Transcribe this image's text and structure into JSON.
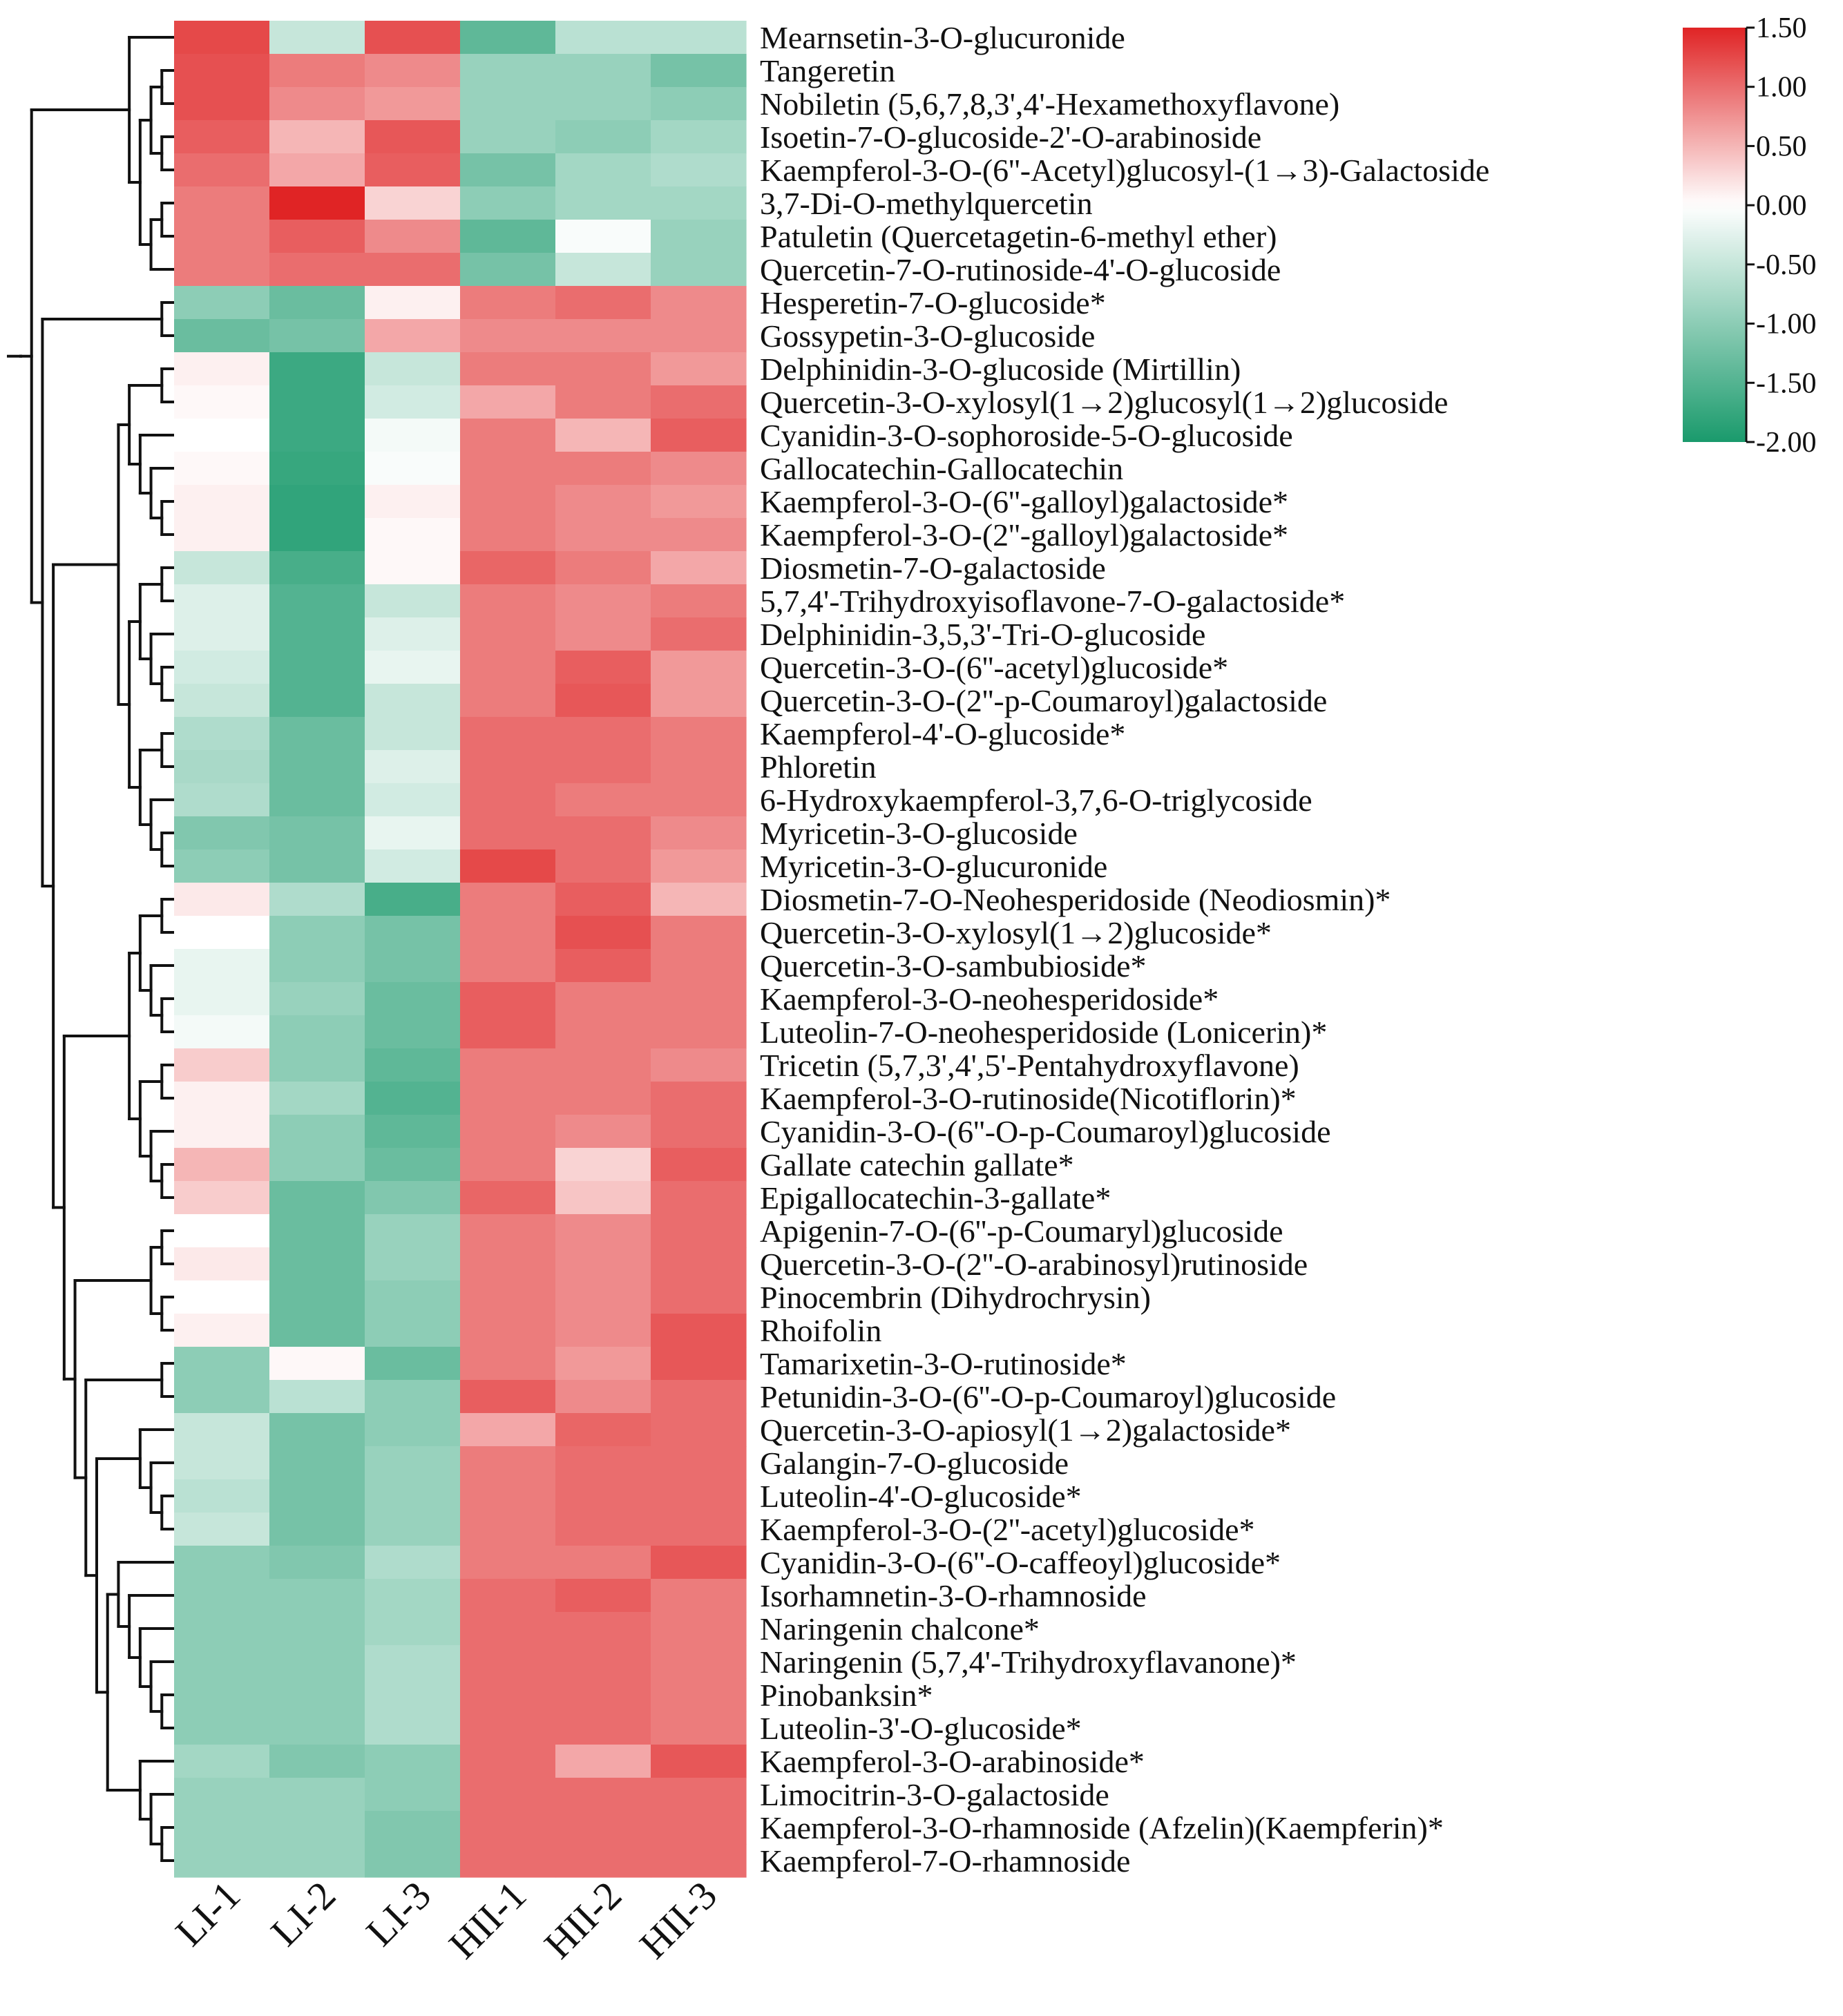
{
  "chart_data": {
    "type": "heatmap",
    "title": "",
    "columns": [
      "LI-1",
      "LI-2",
      "LI-3",
      "HII-1",
      "HII-2",
      "HII-3"
    ],
    "rows": [
      "Mearnsetin-3-O-glucuronide",
      "Tangeretin",
      "Nobiletin (5,6,7,8,3',4'-Hexamethoxyflavone)",
      "Isoetin-7-O-glucoside-2'-O-arabinoside",
      "Kaempferol-3-O-(6''-Acetyl)glucosyl-(1→3)-Galactoside",
      "3,7-Di-O-methylquercetin",
      "Patuletin (Quercetagetin-6-methyl ether)",
      "Quercetin-7-O-rutinoside-4'-O-glucoside",
      "Hesperetin-7-O-glucoside*",
      "Gossypetin-3-O-glucoside",
      "Delphinidin-3-O-glucoside (Mirtillin)",
      "Quercetin-3-O-xylosyl(1→2)glucosyl(1→2)glucoside",
      "Cyanidin-3-O-sophoroside-5-O-glucoside",
      "Gallocatechin-Gallocatechin",
      "Kaempferol-3-O-(6''-galloyl)galactoside*",
      "Kaempferol-3-O-(2''-galloyl)galactoside*",
      "Diosmetin-7-O-galactoside",
      "5,7,4'-Trihydroxyisoflavone-7-O-galactoside*",
      "Delphinidin-3,5,3'-Tri-O-glucoside",
      "Quercetin-3-O-(6''-acetyl)glucoside*",
      "Quercetin-3-O-(2''-p-Coumaroyl)galactoside",
      "Kaempferol-4'-O-glucoside*",
      "Phloretin",
      "6-Hydroxykaempferol-3,7,6-O-triglycoside",
      "Myricetin-3-O-glucoside",
      "Myricetin-3-O-glucuronide",
      "Diosmetin-7-O-Neohesperidoside (Neodiosmin)*",
      "Quercetin-3-O-xylosyl(1→2)glucoside*",
      "Quercetin-3-O-sambubioside*",
      "Kaempferol-3-O-neohesperidoside*",
      "Luteolin-7-O-neohesperidoside (Lonicerin)*",
      "Tricetin (5,7,3',4',5'-Pentahydroxyflavone)",
      "Kaempferol-3-O-rutinoside(Nicotiflorin)*",
      "Cyanidin-3-O-(6''-O-p-Coumaroyl)glucoside",
      "Gallate catechin gallate*",
      "Epigallocatechin-3-gallate*",
      "Apigenin-7-O-(6''-p-Coumaryl)glucoside",
      "Quercetin-3-O-(2''-O-arabinosyl)rutinoside",
      "Pinocembrin (Dihydrochrysin)",
      "Rhoifolin",
      "Tamarixetin-3-O-rutinoside*",
      "Petunidin-3-O-(6''-O-p-Coumaroyl)glucoside",
      "Quercetin-3-O-apiosyl(1→2)galactoside*",
      "Galangin-7-O-glucoside",
      "Luteolin-4'-O-glucoside*",
      "Kaempferol-3-O-(2''-acetyl)glucoside*",
      "Cyanidin-3-O-(6''-O-caffeoyl)glucoside*",
      "Isorhamnetin-3-O-rhamnoside",
      "Naringenin chalcone*",
      "Naringenin (5,7,4'-Trihydroxyflavanone)*",
      "Pinobanksin*",
      "Luteolin-3'-O-glucoside*",
      "Kaempferol-3-O-arabinoside*",
      "Limocitrin-3-O-galactoside",
      "Kaempferol-3-O-rhamnoside (Afzelin)(Kaempferin)*",
      "Kaempferol-7-O-rhamnoside"
    ],
    "values": [
      [
        1.25,
        -0.5,
        1.2,
        -1.4,
        -0.6,
        -0.6
      ],
      [
        1.2,
        0.9,
        0.8,
        -0.9,
        -0.9,
        -1.2
      ],
      [
        1.2,
        0.8,
        0.7,
        -0.9,
        -0.9,
        -1.0
      ],
      [
        1.1,
        0.5,
        1.15,
        -0.9,
        -1.0,
        -0.8
      ],
      [
        1.0,
        0.6,
        1.1,
        -1.2,
        -0.8,
        -0.7
      ],
      [
        0.9,
        1.5,
        0.3,
        -1.0,
        -0.8,
        -0.8
      ],
      [
        0.9,
        1.1,
        0.8,
        -1.4,
        -0.05,
        -0.9
      ],
      [
        0.9,
        1.0,
        1.0,
        -1.2,
        -0.5,
        -0.9
      ],
      [
        -1.0,
        -1.3,
        0.1,
        0.9,
        1.0,
        0.8
      ],
      [
        -1.3,
        -1.2,
        0.6,
        0.8,
        0.8,
        0.8
      ],
      [
        0.1,
        -1.7,
        -0.5,
        0.9,
        0.9,
        0.7
      ],
      [
        0.05,
        -1.7,
        -0.4,
        0.6,
        0.9,
        1.0
      ],
      [
        0.0,
        -1.7,
        -0.1,
        0.9,
        0.5,
        1.1
      ],
      [
        0.05,
        -1.75,
        -0.05,
        0.9,
        0.9,
        0.8
      ],
      [
        0.1,
        -1.8,
        0.1,
        0.9,
        0.8,
        0.7
      ],
      [
        0.1,
        -1.8,
        0.05,
        0.9,
        0.8,
        0.8
      ],
      [
        -0.5,
        -1.6,
        0.05,
        1.05,
        0.9,
        0.6
      ],
      [
        -0.3,
        -1.5,
        -0.5,
        0.9,
        0.8,
        0.9
      ],
      [
        -0.3,
        -1.5,
        -0.3,
        0.9,
        0.8,
        1.0
      ],
      [
        -0.4,
        -1.5,
        -0.2,
        0.9,
        1.1,
        0.7
      ],
      [
        -0.5,
        -1.5,
        -0.5,
        0.9,
        1.15,
        0.7
      ],
      [
        -0.7,
        -1.3,
        -0.5,
        1.0,
        1.0,
        0.9
      ],
      [
        -0.75,
        -1.3,
        -0.3,
        1.0,
        1.0,
        0.9
      ],
      [
        -0.7,
        -1.3,
        -0.4,
        1.0,
        0.9,
        0.9
      ],
      [
        -1.1,
        -1.2,
        -0.2,
        1.0,
        1.0,
        0.8
      ],
      [
        -1.0,
        -1.2,
        -0.4,
        1.25,
        1.0,
        0.7
      ],
      [
        0.15,
        -0.7,
        -1.6,
        0.9,
        1.1,
        0.5
      ],
      [
        0.0,
        -1.0,
        -1.2,
        0.9,
        1.2,
        0.9
      ],
      [
        -0.2,
        -1.0,
        -1.2,
        0.9,
        1.1,
        0.9
      ],
      [
        -0.2,
        -0.9,
        -1.3,
        1.1,
        0.9,
        0.9
      ],
      [
        -0.1,
        -1.0,
        -1.3,
        1.1,
        0.9,
        0.9
      ],
      [
        0.35,
        -1.0,
        -1.4,
        0.9,
        0.9,
        0.8
      ],
      [
        0.1,
        -0.8,
        -1.5,
        0.9,
        0.9,
        1.0
      ],
      [
        0.1,
        -1.0,
        -1.4,
        0.9,
        0.8,
        1.0
      ],
      [
        0.5,
        -1.0,
        -1.3,
        0.9,
        0.3,
        1.1
      ],
      [
        0.35,
        -1.3,
        -1.1,
        1.05,
        0.4,
        1.0
      ],
      [
        0.0,
        -1.3,
        -0.9,
        0.9,
        0.8,
        1.0
      ],
      [
        0.15,
        -1.3,
        -0.9,
        0.9,
        0.8,
        1.0
      ],
      [
        0.0,
        -1.3,
        -1.0,
        0.9,
        0.8,
        1.0
      ],
      [
        0.1,
        -1.3,
        -1.0,
        0.9,
        0.8,
        1.15
      ],
      [
        -1.0,
        0.05,
        -1.3,
        0.9,
        0.7,
        1.15
      ],
      [
        -1.0,
        -0.6,
        -1.0,
        1.1,
        0.8,
        1.0
      ],
      [
        -0.5,
        -1.2,
        -1.0,
        0.6,
        1.05,
        1.0
      ],
      [
        -0.5,
        -1.2,
        -0.9,
        0.9,
        1.0,
        1.0
      ],
      [
        -0.6,
        -1.2,
        -0.9,
        0.9,
        1.0,
        1.0
      ],
      [
        -0.5,
        -1.2,
        -0.9,
        0.9,
        1.0,
        1.0
      ],
      [
        -1.0,
        -1.1,
        -0.7,
        0.9,
        0.9,
        1.15
      ],
      [
        -1.0,
        -1.0,
        -0.8,
        1.0,
        1.1,
        0.9
      ],
      [
        -1.0,
        -1.0,
        -0.8,
        1.0,
        1.0,
        0.9
      ],
      [
        -1.0,
        -1.0,
        -0.7,
        1.0,
        1.0,
        0.9
      ],
      [
        -1.0,
        -1.0,
        -0.7,
        1.0,
        1.0,
        0.9
      ],
      [
        -1.0,
        -1.0,
        -0.7,
        1.0,
        1.0,
        0.9
      ],
      [
        -0.8,
        -1.1,
        -1.0,
        1.0,
        0.6,
        1.15
      ],
      [
        -0.9,
        -0.9,
        -1.0,
        1.0,
        1.0,
        1.0
      ],
      [
        -0.9,
        -0.9,
        -1.1,
        1.0,
        1.0,
        1.0
      ],
      [
        -0.9,
        -0.9,
        -1.1,
        1.0,
        1.0,
        1.0
      ]
    ],
    "colorbar": {
      "min": -2.0,
      "max": 1.5,
      "ticks": [
        "1.50",
        "1.00",
        "0.50",
        "0.00",
        "-0.50",
        "-1.00",
        "-1.50",
        "-2.00"
      ],
      "low_color": "#1a9a6c",
      "mid_color": "#ffffff",
      "high_color": "#e02425",
      "placement": "top-right"
    },
    "dendrogram": "rows, left side",
    "xlabel": "",
    "ylabel": ""
  }
}
